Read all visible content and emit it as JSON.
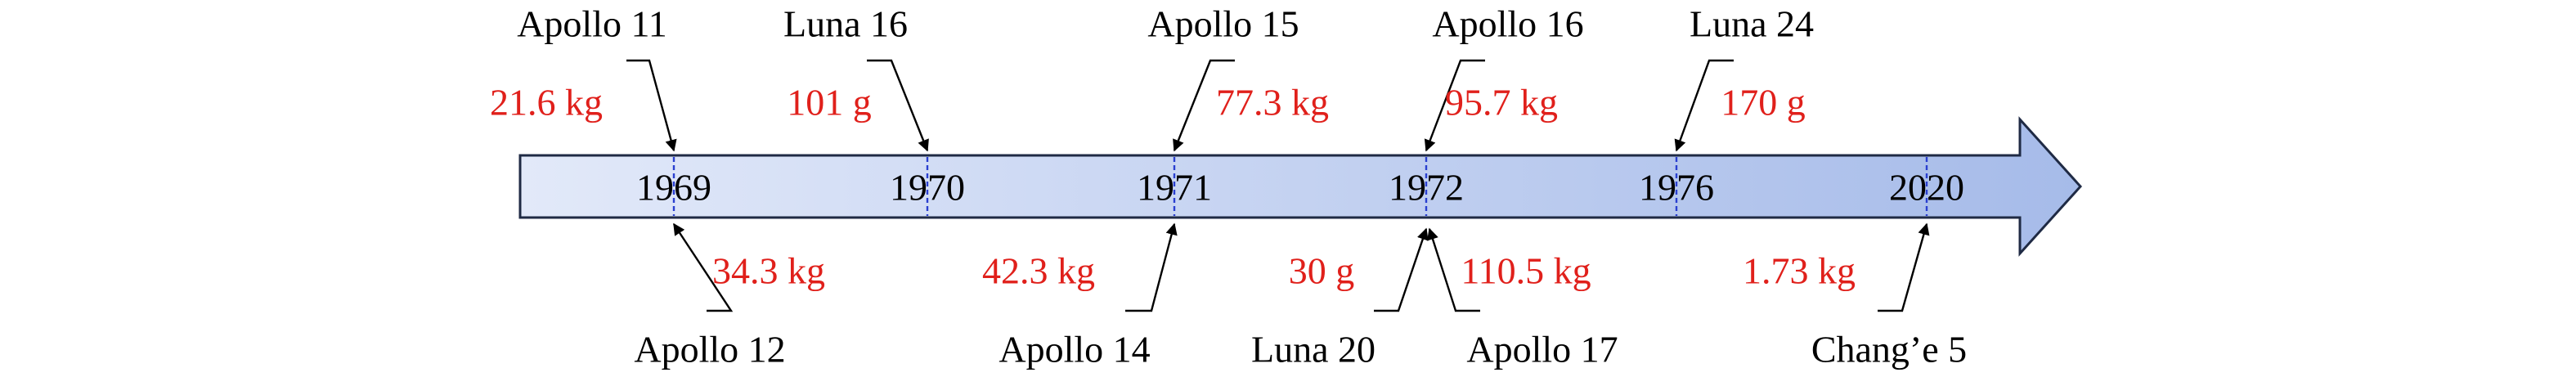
{
  "timeline": {
    "years": [
      "1969",
      "1970",
      "1971",
      "1972",
      "1976",
      "2020"
    ],
    "missions": [
      {
        "name": "Apollo 11",
        "mass": "21.6 kg"
      },
      {
        "name": "Luna 16",
        "mass": "101 g"
      },
      {
        "name": "Apollo 15",
        "mass": "77.3 kg"
      },
      {
        "name": "Apollo 16",
        "mass": "95.7 kg"
      },
      {
        "name": "Luna 24",
        "mass": "170 g"
      },
      {
        "name": "Apollo 12",
        "mass": "34.3 kg"
      },
      {
        "name": "Apollo 14",
        "mass": "42.3 kg"
      },
      {
        "name": "Luna 20",
        "mass": "30 g"
      },
      {
        "name": "Apollo 17",
        "mass": "110.5 kg"
      },
      {
        "name": "Chang’e 5",
        "mass": "1.73 kg"
      }
    ]
  }
}
